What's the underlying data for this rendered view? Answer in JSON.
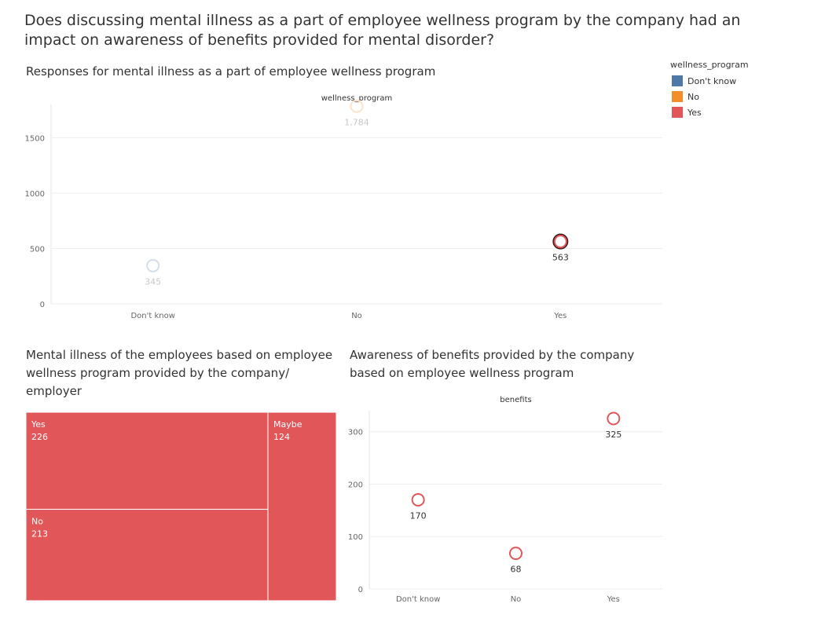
{
  "dashboard": {
    "title": "Does discussing mental illness as a part of employee wellness program by the company had an impact on awareness of benefits provided for mental disorder?"
  },
  "legend": {
    "title": "wellness_program",
    "items": [
      {
        "label": "Don't know",
        "color": "#4e79a7"
      },
      {
        "label": "No",
        "color": "#f28e2b"
      },
      {
        "label": "Yes",
        "color": "#e15759"
      }
    ]
  },
  "chart_data": [
    {
      "type": "scatter",
      "title": "Responses for mental illness as a part of employee wellness program",
      "column_header": "wellness_program",
      "categories": [
        "Don't know",
        "No",
        "Yes"
      ],
      "values": [
        345,
        1784,
        563
      ],
      "labels": [
        "345",
        "1,784",
        "563"
      ],
      "colors": [
        "#4e79a7",
        "#f28e2b",
        "#e15759"
      ],
      "faded": [
        true,
        true,
        false
      ],
      "ylim": [
        0,
        1800
      ],
      "yticks": [
        0,
        500,
        1000,
        1500
      ],
      "grid": true
    },
    {
      "type": "treemap",
      "title": "Mental illness of the employees based on employee wellness program provided by the company/ employer",
      "items": [
        {
          "label": "Yes",
          "value": 226
        },
        {
          "label": "No",
          "value": 213
        },
        {
          "label": "Maybe",
          "value": 124
        }
      ],
      "color": "#e15759"
    },
    {
      "type": "scatter",
      "title": "Awareness of benefits provided by the company based on employee wellness program",
      "column_header": "benefits",
      "categories": [
        "Don't know",
        "No",
        "Yes"
      ],
      "values": [
        170,
        68,
        325
      ],
      "labels": [
        "170",
        "68",
        "325"
      ],
      "color": "#e15759",
      "ylim": [
        0,
        340
      ],
      "yticks": [
        0,
        100,
        200,
        300
      ],
      "grid": true
    }
  ]
}
